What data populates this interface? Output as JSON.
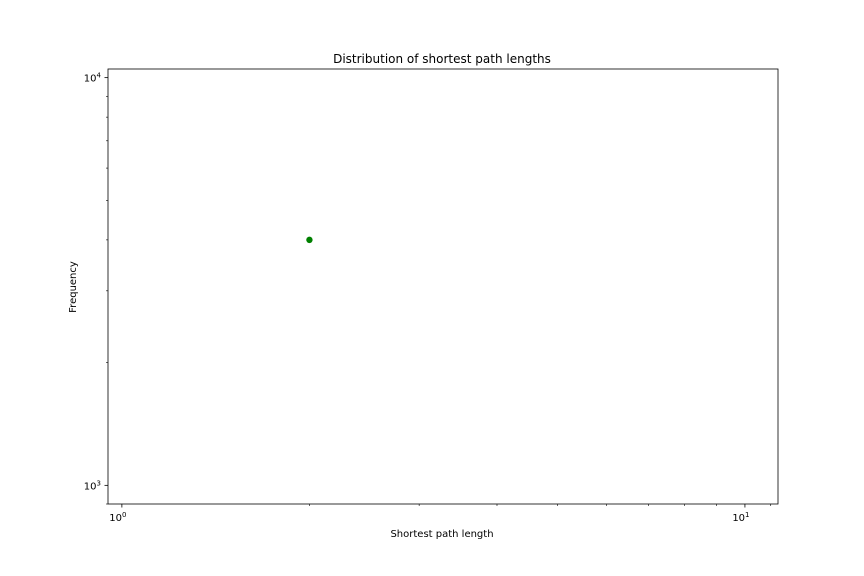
{
  "chart_data": {
    "type": "scatter",
    "title": "Distribution of shortest path lengths",
    "xlabel": "Shortest path length",
    "ylabel": "Frequency",
    "xscale": "log",
    "yscale": "log",
    "xlim": [
      0.95,
      11.3
    ],
    "ylim": [
      900,
      10500
    ],
    "x": [
      2
    ],
    "y": [
      4000
    ],
    "point_color": "#008000",
    "x_ticks": [
      {
        "value": 1,
        "base": "10",
        "exp": "0"
      },
      {
        "value": 10,
        "base": "10",
        "exp": "1"
      }
    ],
    "y_ticks": [
      {
        "value": 1000,
        "base": "10",
        "exp": "3"
      },
      {
        "value": 10000,
        "base": "10",
        "exp": "4"
      }
    ]
  }
}
